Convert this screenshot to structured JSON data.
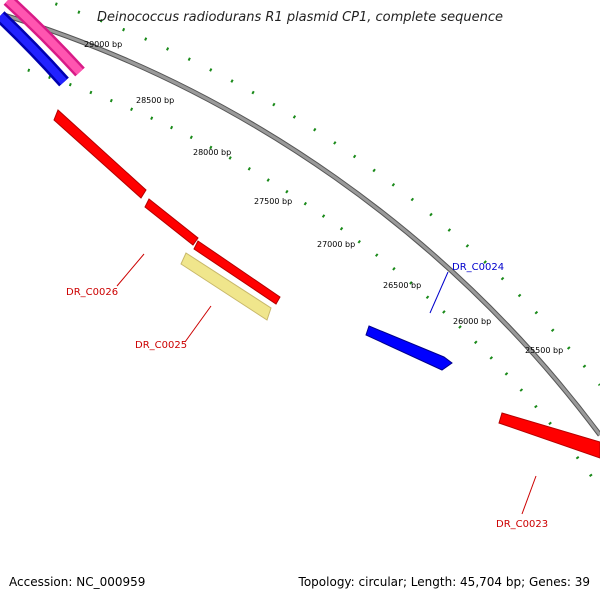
{
  "title": "Deinococcus radiodurans R1 plasmid CP1, complete sequence",
  "footer": {
    "accession": "Accession: NC_000959",
    "summary": "Topology: circular; Length: 45,704 bp; Genes: 39"
  },
  "colors": {
    "backbone": "#8a8a8a",
    "tick": "#1a8a1a",
    "red_gene": "#ff0000",
    "blue_gene": "#0000ff",
    "pink_gene": "#ff3399",
    "yellow_gene": "#f0e68c",
    "red_label": "#cc0000",
    "blue_label": "#0000cc"
  },
  "scale_labels": [
    "29000 bp",
    "28500 bp",
    "28000 bp",
    "27500 bp",
    "27000 bp",
    "26500 bp",
    "26000 bp",
    "25500 bp"
  ],
  "gene_labels": [
    "DR_C0026",
    "DR_C0025",
    "DR_C0024",
    "DR_C0023"
  ]
}
